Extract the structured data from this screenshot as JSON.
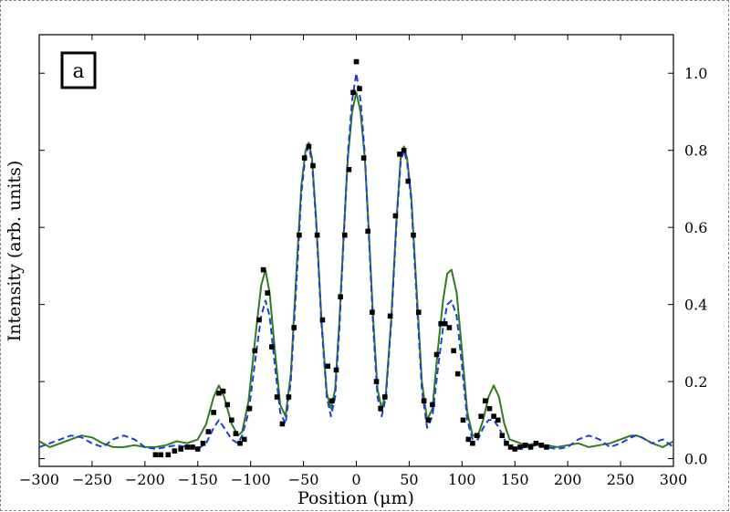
{
  "chart_data": {
    "type": "line",
    "panel_label": "a",
    "xlabel": "Position (μm)",
    "ylabel": "Intensity (arb. units)",
    "xlim": [
      -300,
      300
    ],
    "ylim": [
      -0.02,
      1.1
    ],
    "xticks": [
      -300,
      -250,
      -200,
      -150,
      -100,
      -50,
      0,
      50,
      100,
      150,
      200,
      250,
      300
    ],
    "yticks": [
      0.0,
      0.2,
      0.4,
      0.6,
      0.8,
      1.0
    ],
    "ytick_side": "right",
    "grid": false,
    "series": [
      {
        "style": "solid",
        "color": "#2e7d1e",
        "x": [
          -300,
          -290,
          -280,
          -270,
          -260,
          -250,
          -240,
          -230,
          -220,
          -210,
          -200,
          -190,
          -180,
          -170,
          -160,
          -150,
          -142,
          -135,
          -130,
          -125,
          -118,
          -112,
          -108,
          -102,
          -95,
          -90,
          -86,
          -82,
          -77,
          -72,
          -67,
          -62,
          -57,
          -52,
          -48,
          -45,
          -42,
          -38,
          -33,
          -28,
          -24,
          -20,
          -16,
          -12,
          -8,
          -4,
          0,
          4,
          8,
          12,
          16,
          20,
          24,
          28,
          33,
          38,
          42,
          45,
          48,
          52,
          57,
          62,
          67,
          72,
          77,
          82,
          86,
          90,
          95,
          100,
          105,
          110,
          115,
          120,
          125,
          130,
          135,
          140,
          145,
          150,
          160,
          170,
          180,
          190,
          200,
          210,
          220,
          230,
          240,
          250,
          260,
          265,
          270,
          280,
          290,
          300
        ],
        "y": [
          0.045,
          0.03,
          0.04,
          0.05,
          0.06,
          0.055,
          0.04,
          0.03,
          0.03,
          0.035,
          0.03,
          0.03,
          0.035,
          0.045,
          0.04,
          0.05,
          0.09,
          0.16,
          0.19,
          0.16,
          0.09,
          0.06,
          0.07,
          0.15,
          0.33,
          0.45,
          0.49,
          0.43,
          0.28,
          0.14,
          0.11,
          0.22,
          0.47,
          0.71,
          0.8,
          0.82,
          0.78,
          0.62,
          0.36,
          0.17,
          0.13,
          0.18,
          0.36,
          0.58,
          0.78,
          0.9,
          0.95,
          0.9,
          0.78,
          0.58,
          0.36,
          0.18,
          0.13,
          0.17,
          0.36,
          0.62,
          0.78,
          0.81,
          0.78,
          0.68,
          0.44,
          0.2,
          0.1,
          0.13,
          0.28,
          0.41,
          0.48,
          0.49,
          0.43,
          0.28,
          0.12,
          0.06,
          0.06,
          0.1,
          0.16,
          0.19,
          0.16,
          0.09,
          0.05,
          0.045,
          0.035,
          0.04,
          0.035,
          0.03,
          0.035,
          0.04,
          0.03,
          0.035,
          0.04,
          0.05,
          0.06,
          0.06,
          0.055,
          0.04,
          0.03,
          0.045
        ]
      },
      {
        "style": "dashed",
        "color": "#1f3fd8",
        "x": [
          -300,
          -290,
          -280,
          -270,
          -260,
          -250,
          -240,
          -230,
          -220,
          -210,
          -200,
          -190,
          -180,
          -170,
          -160,
          -150,
          -142,
          -135,
          -130,
          -125,
          -118,
          -112,
          -108,
          -102,
          -95,
          -90,
          -86,
          -82,
          -77,
          -72,
          -67,
          -62,
          -57,
          -52,
          -48,
          -45,
          -42,
          -38,
          -33,
          -28,
          -24,
          -20,
          -16,
          -12,
          -8,
          -4,
          0,
          4,
          8,
          12,
          16,
          20,
          24,
          28,
          33,
          38,
          42,
          45,
          48,
          52,
          57,
          62,
          67,
          72,
          77,
          82,
          86,
          90,
          95,
          100,
          105,
          110,
          115,
          120,
          125,
          130,
          135,
          140,
          145,
          150,
          160,
          170,
          180,
          190,
          200,
          210,
          220,
          230,
          240,
          250,
          260,
          265,
          270,
          280,
          290,
          300
        ],
        "y": [
          0.03,
          0.04,
          0.05,
          0.06,
          0.055,
          0.04,
          0.03,
          0.05,
          0.06,
          0.05,
          0.03,
          0.025,
          0.03,
          0.035,
          0.03,
          0.025,
          0.04,
          0.08,
          0.1,
          0.08,
          0.05,
          0.04,
          0.06,
          0.12,
          0.27,
          0.37,
          0.41,
          0.37,
          0.24,
          0.12,
          0.09,
          0.2,
          0.44,
          0.69,
          0.79,
          0.81,
          0.77,
          0.61,
          0.35,
          0.16,
          0.11,
          0.16,
          0.34,
          0.57,
          0.79,
          0.93,
          1.0,
          0.93,
          0.79,
          0.57,
          0.34,
          0.16,
          0.11,
          0.16,
          0.35,
          0.61,
          0.77,
          0.8,
          0.77,
          0.67,
          0.42,
          0.18,
          0.08,
          0.11,
          0.23,
          0.34,
          0.4,
          0.41,
          0.37,
          0.24,
          0.1,
          0.05,
          0.05,
          0.08,
          0.1,
          0.1,
          0.08,
          0.05,
          0.03,
          0.025,
          0.03,
          0.035,
          0.03,
          0.025,
          0.03,
          0.05,
          0.06,
          0.05,
          0.03,
          0.04,
          0.055,
          0.06,
          0.055,
          0.04,
          0.05,
          0.03
        ]
      },
      {
        "style": "markers",
        "color": "#000000",
        "x": [
          -190,
          -185,
          -178,
          -172,
          -166,
          -160,
          -155,
          -150,
          -145,
          -140,
          -135,
          -130,
          -126,
          -122,
          -118,
          -114,
          -110,
          -106,
          -101,
          -96,
          -92,
          -88,
          -84,
          -80,
          -75,
          -70,
          -64,
          -59,
          -54,
          -49,
          -45,
          -41,
          -37,
          -32,
          -27,
          -23,
          -19,
          -15,
          -11,
          -7,
          -3,
          0,
          3,
          7,
          11,
          15,
          19,
          23,
          27,
          32,
          37,
          41,
          45,
          49,
          54,
          59,
          64,
          68,
          72,
          76,
          80,
          84,
          88,
          92,
          96,
          101,
          106,
          110,
          114,
          118,
          122,
          126,
          130,
          134,
          138,
          142,
          146,
          150,
          155,
          160,
          165,
          170,
          175,
          180
        ],
        "y": [
          0.01,
          0.01,
          0.01,
          0.02,
          0.025,
          0.03,
          0.03,
          0.025,
          0.04,
          0.07,
          0.12,
          0.17,
          0.175,
          0.14,
          0.1,
          0.065,
          0.04,
          0.05,
          0.13,
          0.28,
          0.36,
          0.49,
          0.43,
          0.29,
          0.16,
          0.09,
          0.16,
          0.34,
          0.58,
          0.78,
          0.81,
          0.76,
          0.58,
          0.36,
          0.24,
          0.15,
          0.23,
          0.42,
          0.58,
          0.75,
          0.95,
          1.03,
          0.96,
          0.78,
          0.59,
          0.38,
          0.2,
          0.13,
          0.16,
          0.37,
          0.63,
          0.79,
          0.8,
          0.72,
          0.58,
          0.38,
          0.15,
          0.1,
          0.14,
          0.27,
          0.35,
          0.35,
          0.34,
          0.28,
          0.22,
          0.1,
          0.05,
          0.04,
          0.06,
          0.11,
          0.15,
          0.13,
          0.11,
          0.1,
          0.06,
          0.04,
          0.03,
          0.025,
          0.03,
          0.035,
          0.03,
          0.04,
          0.035,
          0.03
        ]
      }
    ]
  }
}
